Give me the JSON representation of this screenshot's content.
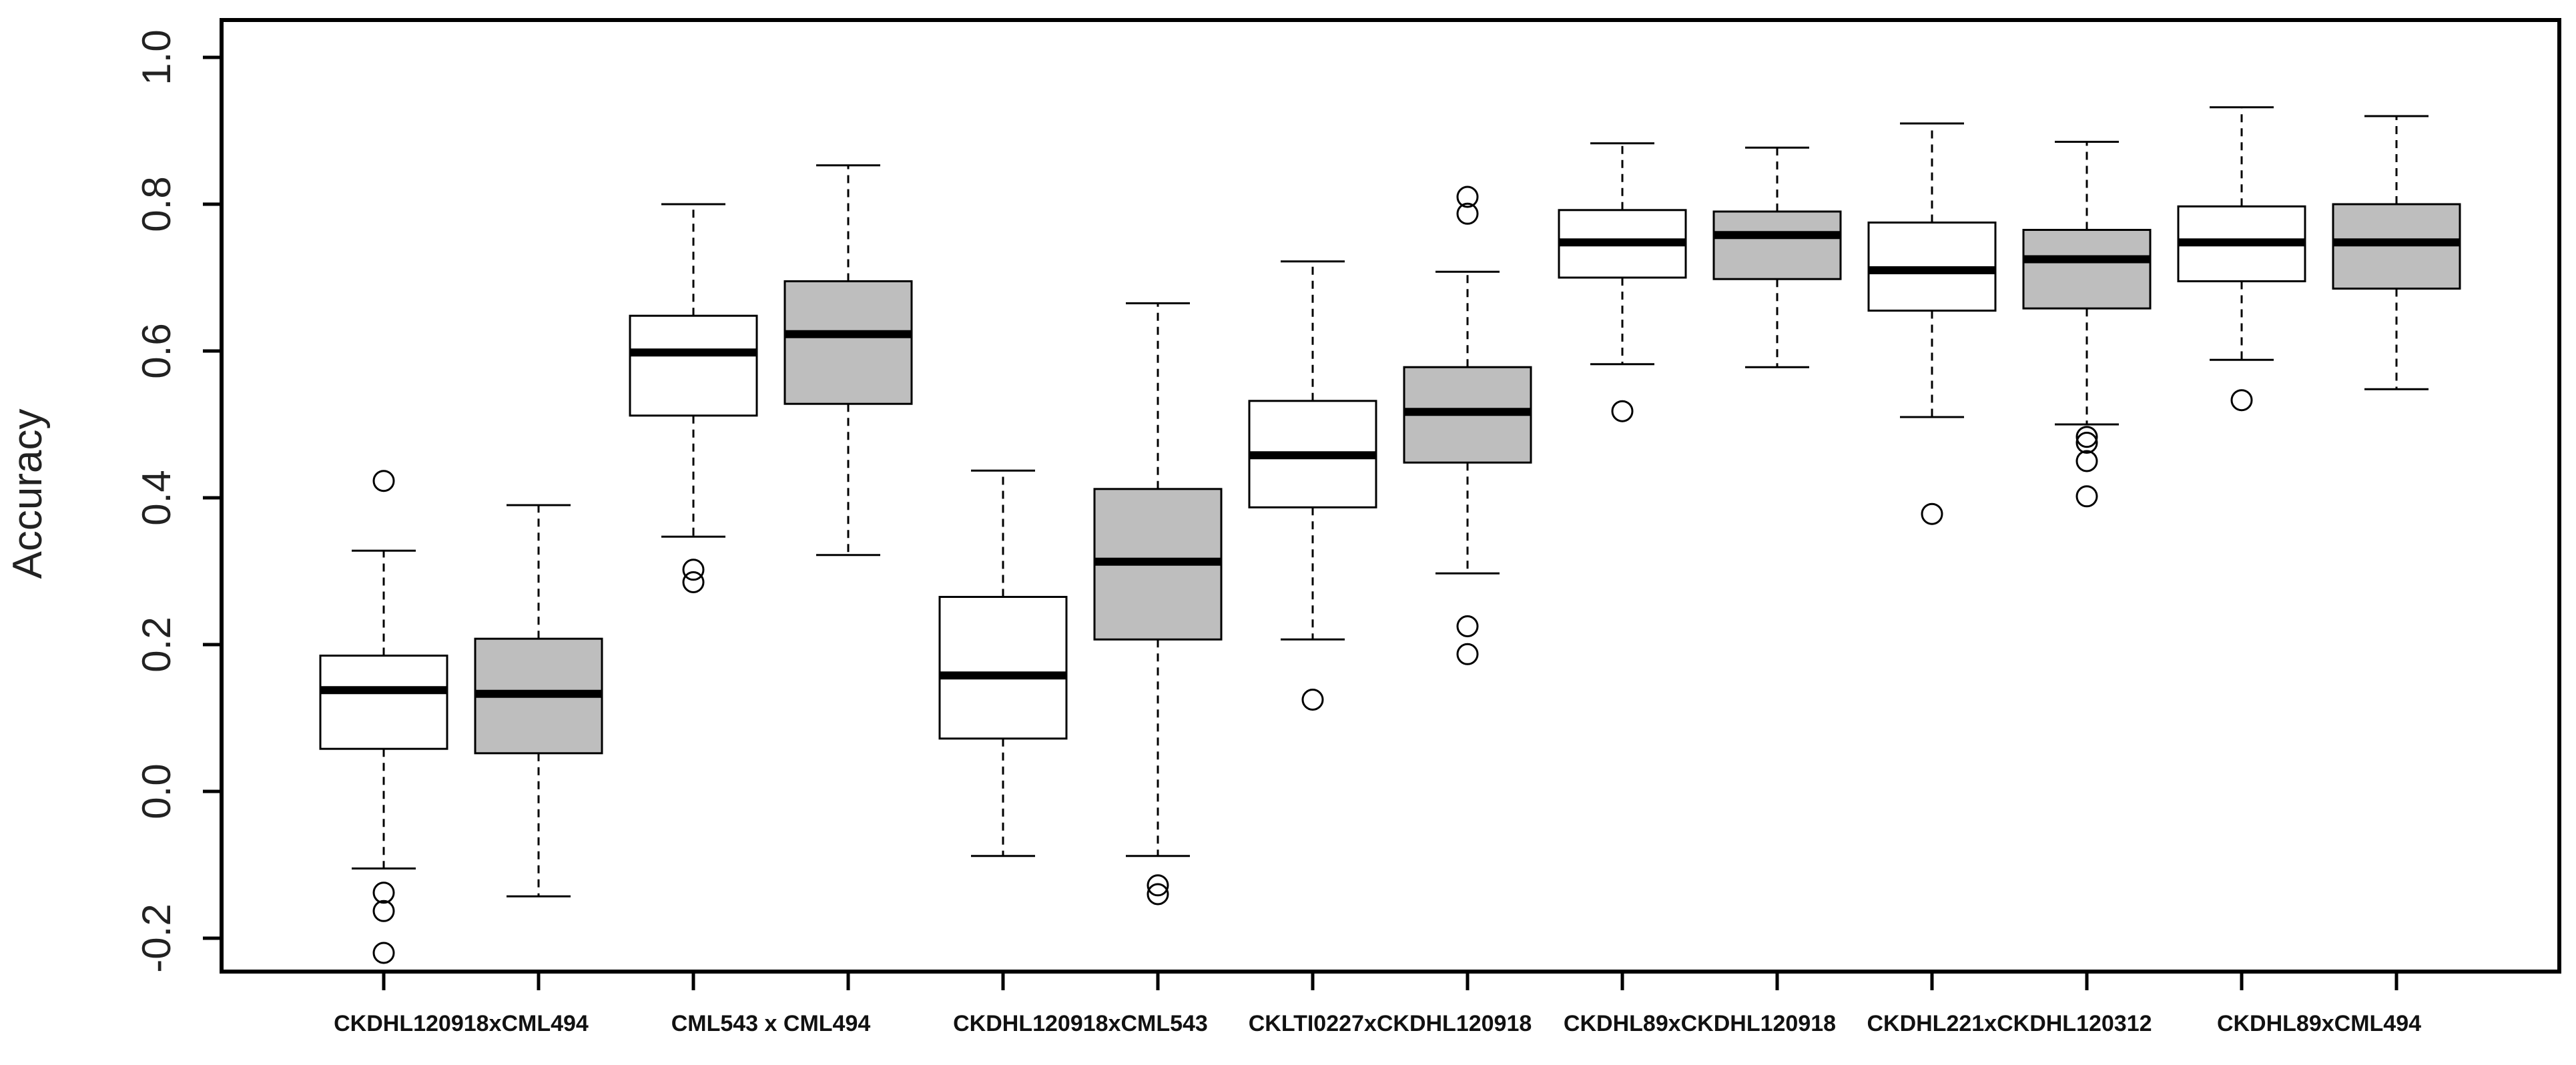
{
  "chart_data": {
    "type": "boxplot",
    "title": "",
    "xlabel": "",
    "ylabel": "Accuracy",
    "ylim": [
      -0.25,
      1.05
    ],
    "yticks": [
      -0.2,
      0.0,
      0.2,
      0.4,
      0.6,
      0.8,
      1.0
    ],
    "ytick_labels": [
      "-0.2",
      "0.0",
      "0.2",
      "0.4",
      "0.6",
      "0.8",
      "1.0"
    ],
    "categories": [
      "CKDHL120918xCML494",
      "CML543 x CML494",
      "CKDHL120918xCML543",
      "CKLTI0227xCKDHL120918",
      "CKDHL89xCKDHL120918",
      "CKDHL221xCKDHL120312",
      "CKDHL89xCML494"
    ],
    "fill_colors": [
      "#ffffff",
      "#bebebe"
    ],
    "grid": false,
    "legend": "none",
    "boxes": [
      {
        "category": 0,
        "group": 0,
        "whisker_low": -0.105,
        "q1": 0.058,
        "median": 0.138,
        "q3": 0.185,
        "whisker_high": 0.328,
        "outliers": [
          0.423,
          -0.138,
          -0.163,
          -0.22
        ]
      },
      {
        "category": 0,
        "group": 1,
        "whisker_low": -0.143,
        "q1": 0.052,
        "median": 0.133,
        "q3": 0.208,
        "whisker_high": 0.39,
        "outliers": []
      },
      {
        "category": 1,
        "group": 0,
        "whisker_low": 0.347,
        "q1": 0.512,
        "median": 0.598,
        "q3": 0.648,
        "whisker_high": 0.8,
        "outliers": [
          0.302,
          0.285
        ]
      },
      {
        "category": 1,
        "group": 1,
        "whisker_low": 0.322,
        "q1": 0.528,
        "median": 0.623,
        "q3": 0.695,
        "whisker_high": 0.853,
        "outliers": []
      },
      {
        "category": 2,
        "group": 0,
        "whisker_low": -0.088,
        "q1": 0.072,
        "median": 0.158,
        "q3": 0.265,
        "whisker_high": 0.437,
        "outliers": []
      },
      {
        "category": 2,
        "group": 1,
        "whisker_low": -0.088,
        "q1": 0.207,
        "median": 0.313,
        "q3": 0.412,
        "whisker_high": 0.665,
        "outliers": [
          -0.128,
          -0.14
        ]
      },
      {
        "category": 3,
        "group": 0,
        "whisker_low": 0.207,
        "q1": 0.387,
        "median": 0.458,
        "q3": 0.532,
        "whisker_high": 0.722,
        "outliers": [
          0.125
        ]
      },
      {
        "category": 3,
        "group": 1,
        "whisker_low": 0.297,
        "q1": 0.448,
        "median": 0.517,
        "q3": 0.578,
        "whisker_high": 0.708,
        "outliers": [
          0.81,
          0.787,
          0.225,
          0.187
        ]
      },
      {
        "category": 4,
        "group": 0,
        "whisker_low": 0.582,
        "q1": 0.7,
        "median": 0.748,
        "q3": 0.792,
        "whisker_high": 0.883,
        "outliers": [
          0.518
        ]
      },
      {
        "category": 4,
        "group": 1,
        "whisker_low": 0.578,
        "q1": 0.698,
        "median": 0.758,
        "q3": 0.79,
        "whisker_high": 0.877,
        "outliers": []
      },
      {
        "category": 5,
        "group": 0,
        "whisker_low": 0.51,
        "q1": 0.655,
        "median": 0.71,
        "q3": 0.775,
        "whisker_high": 0.91,
        "outliers": [
          0.378
        ]
      },
      {
        "category": 5,
        "group": 1,
        "whisker_low": 0.5,
        "q1": 0.658,
        "median": 0.725,
        "q3": 0.765,
        "whisker_high": 0.885,
        "outliers": [
          0.483,
          0.475,
          0.45,
          0.402
        ]
      },
      {
        "category": 6,
        "group": 0,
        "whisker_low": 0.588,
        "q1": 0.695,
        "median": 0.748,
        "q3": 0.797,
        "whisker_high": 0.932,
        "outliers": [
          0.533
        ]
      },
      {
        "category": 6,
        "group": 1,
        "whisker_low": 0.548,
        "q1": 0.685,
        "median": 0.748,
        "q3": 0.8,
        "whisker_high": 0.92,
        "outliers": []
      }
    ]
  }
}
